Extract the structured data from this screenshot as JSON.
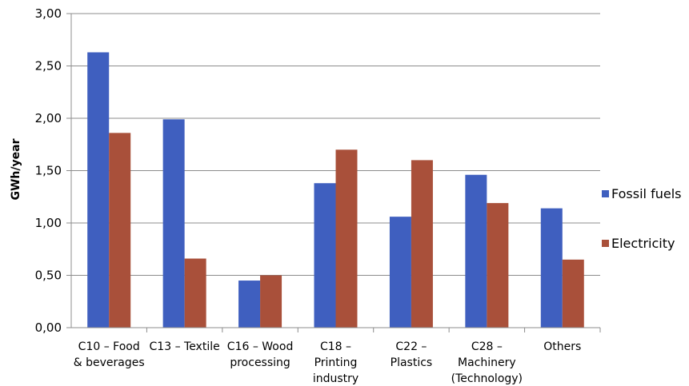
{
  "chart_data": {
    "type": "bar",
    "ylabel": "GWh/year",
    "xlabel": "",
    "ylim": [
      0,
      3
    ],
    "yticks": [
      "0,00",
      "0,50",
      "1,00",
      "1,50",
      "2,00",
      "2,50",
      "3,00"
    ],
    "grid": true,
    "legend_position": "right",
    "categories": [
      [
        "C10 – Food",
        "& beverages"
      ],
      [
        "C13 – Textile"
      ],
      [
        "C16 – Wood",
        "processing"
      ],
      [
        "C18 –",
        "Printing",
        "industry"
      ],
      [
        "C22 –",
        "Plastics"
      ],
      [
        "C28 –",
        "Machinery",
        "(Technology)"
      ],
      [
        "Others"
      ]
    ],
    "series": [
      {
        "name": "Fossil fuels",
        "color": "#3f5fbf",
        "values": [
          2.63,
          1.99,
          0.45,
          1.38,
          1.06,
          1.46,
          1.14
        ]
      },
      {
        "name": "Electricity",
        "color": "#a9503a",
        "values": [
          1.86,
          0.66,
          0.5,
          1.7,
          1.6,
          1.19,
          0.65
        ]
      }
    ]
  }
}
